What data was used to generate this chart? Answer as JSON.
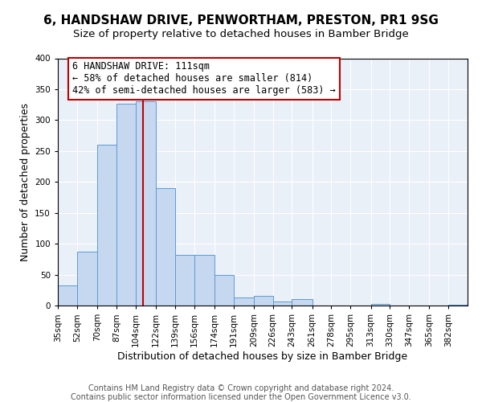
{
  "title": "6, HANDSHAW DRIVE, PENWORTHAM, PRESTON, PR1 9SG",
  "subtitle": "Size of property relative to detached houses in Bamber Bridge",
  "xlabel": "Distribution of detached houses by size in Bamber Bridge",
  "ylabel": "Number of detached properties",
  "bin_labels": [
    "35sqm",
    "52sqm",
    "70sqm",
    "87sqm",
    "104sqm",
    "122sqm",
    "139sqm",
    "156sqm",
    "174sqm",
    "191sqm",
    "209sqm",
    "226sqm",
    "243sqm",
    "261sqm",
    "278sqm",
    "295sqm",
    "313sqm",
    "330sqm",
    "347sqm",
    "365sqm",
    "382sqm"
  ],
  "bin_edges": [
    35,
    52,
    70,
    87,
    104,
    122,
    139,
    156,
    174,
    191,
    209,
    226,
    243,
    261,
    278,
    295,
    313,
    330,
    347,
    365,
    382
  ],
  "bar_heights": [
    33,
    87,
    260,
    327,
    330,
    190,
    82,
    82,
    50,
    13,
    15,
    7,
    10,
    0,
    0,
    0,
    2,
    0,
    0,
    0,
    1
  ],
  "bar_color": "#c5d8f0",
  "bar_edge_color": "#5b9bd5",
  "vline_color": "#c00000",
  "vline_x": 111,
  "annotation_text": "6 HANDSHAW DRIVE: 111sqm\n← 58% of detached houses are smaller (814)\n42% of semi-detached houses are larger (583) →",
  "annotation_box_color": "white",
  "annotation_box_edge_color": "#c00000",
  "ylim": [
    0,
    400
  ],
  "yticks": [
    0,
    50,
    100,
    150,
    200,
    250,
    300,
    350,
    400
  ],
  "footer_line1": "Contains HM Land Registry data © Crown copyright and database right 2024.",
  "footer_line2": "Contains public sector information licensed under the Open Government Licence v3.0.",
  "bg_color": "#eaf0f8",
  "fig_bg_color": "#ffffff",
  "title_fontsize": 11,
  "subtitle_fontsize": 9.5,
  "axis_label_fontsize": 9,
  "tick_fontsize": 7.5,
  "annotation_fontsize": 8.5,
  "footer_fontsize": 7
}
